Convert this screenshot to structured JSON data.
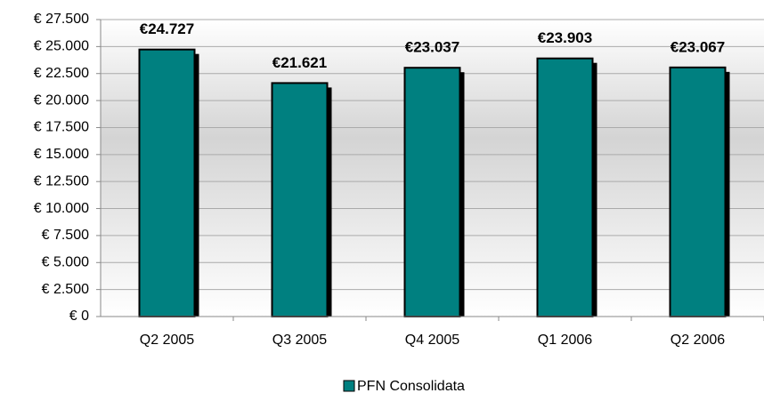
{
  "chart_data": {
    "type": "bar",
    "categories": [
      "Q2 2005",
      "Q3 2005",
      "Q4 2005",
      "Q1 2006",
      "Q2 2006"
    ],
    "series": [
      {
        "name": "PFN Consolidata",
        "color": "#008080",
        "values": [
          24727,
          21621,
          23037,
          23903,
          23067
        ],
        "value_labels": [
          "€24.727",
          "€21.621",
          "€23.037",
          "€23.903",
          "€23.067"
        ]
      }
    ],
    "ylim": [
      0,
      27500
    ],
    "yticks": [
      {
        "value": 0,
        "label": "€ 0"
      },
      {
        "value": 2500,
        "label": "€ 2.500"
      },
      {
        "value": 5000,
        "label": "€ 5.000"
      },
      {
        "value": 7500,
        "label": "€ 7.500"
      },
      {
        "value": 10000,
        "label": "€ 10.000"
      },
      {
        "value": 12500,
        "label": "€ 12.500"
      },
      {
        "value": 15000,
        "label": "€ 15.000"
      },
      {
        "value": 17500,
        "label": "€ 17.500"
      },
      {
        "value": 20000,
        "label": "€ 20.000"
      },
      {
        "value": 22500,
        "label": "€ 22.500"
      },
      {
        "value": 25000,
        "label": "€ 25.000"
      },
      {
        "value": 27500,
        "label": "€ 27.500"
      }
    ],
    "grid": true,
    "legend": "bottom"
  }
}
